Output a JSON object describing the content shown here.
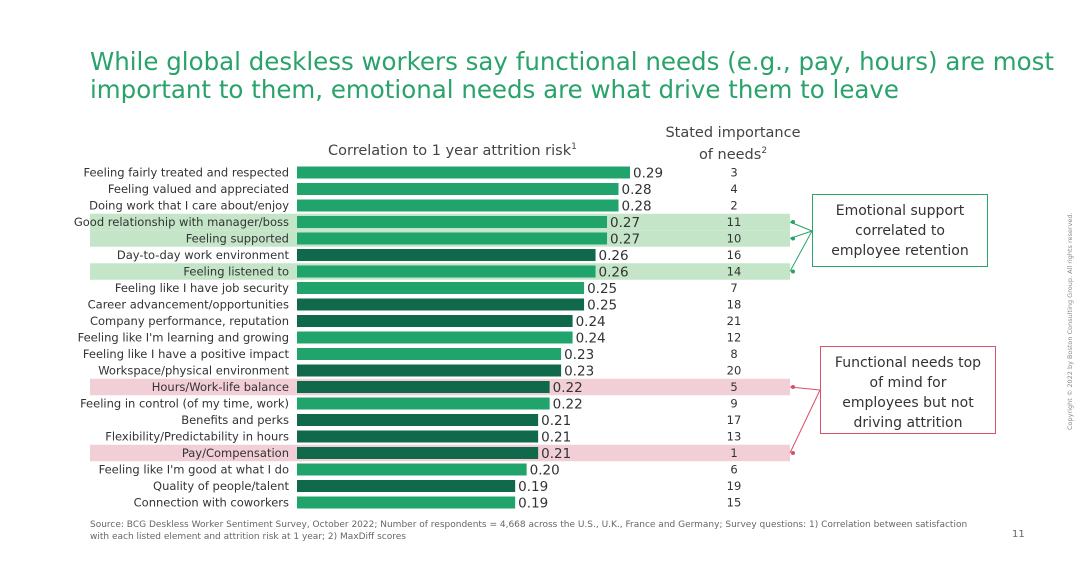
{
  "title_lines": [
    "While global deskless workers say functional needs (e.g., pay, hours) are most",
    "important to them, emotional needs are what drive them to leave"
  ],
  "header_correlation": "Correlation to 1 year attrition risk",
  "header_correlation_sup": "1",
  "header_importance_line1": "Stated importance",
  "header_importance_line2": "of needs",
  "header_importance_sup": "2",
  "chart_data": {
    "type": "bar",
    "orientation": "horizontal",
    "categories": [
      "Feeling fairly treated and respected",
      "Feeling valued and appreciated",
      "Doing work that I care about/enjoy",
      "Good relationship with manager/boss",
      "Feeling supported",
      "Day-to-day work environment",
      "Feeling listened to",
      "Feeling like I have job security",
      "Career advancement/opportunities",
      "Company performance, reputation",
      "Feeling like I'm learning and growing",
      "Feeling like I have a positive impact",
      "Workspace/physical environment",
      "Hours/Work-life balance",
      "Feeling in control (of my time, work)",
      "Benefits and perks",
      "Flexibility/Predictability in hours",
      "Pay/Compensation",
      "Feeling like I'm good at what I do",
      "Quality of people/talent",
      "Connection with coworkers"
    ],
    "values": [
      0.29,
      0.28,
      0.28,
      0.27,
      0.27,
      0.26,
      0.26,
      0.25,
      0.25,
      0.24,
      0.24,
      0.23,
      0.23,
      0.22,
      0.22,
      0.21,
      0.21,
      0.21,
      0.2,
      0.19,
      0.19
    ],
    "value_labels": [
      "0.29",
      "0.28",
      "0.28",
      "0.27",
      "0.27",
      "0.26",
      "0.26",
      "0.25",
      "0.25",
      "0.24",
      "0.24",
      "0.23",
      "0.23",
      "0.22",
      "0.22",
      "0.21",
      "0.21",
      "0.21",
      "0.20",
      "0.19",
      "0.19"
    ],
    "stated_importance": [
      "3",
      "4",
      "2",
      "11",
      "10",
      "16",
      "14",
      "7",
      "18",
      "21",
      "12",
      "8",
      "20",
      "5",
      "9",
      "17",
      "13",
      "1",
      "6",
      "19",
      "15"
    ],
    "bar_type": [
      "emotional",
      "emotional",
      "emotional",
      "emotional",
      "emotional",
      "functional",
      "emotional",
      "emotional",
      "functional",
      "functional",
      "emotional",
      "emotional",
      "functional",
      "functional",
      "emotional",
      "functional",
      "functional",
      "functional",
      "emotional",
      "functional",
      "emotional"
    ],
    "highlight": [
      "none",
      "none",
      "none",
      "green",
      "green",
      "none",
      "green",
      "none",
      "none",
      "none",
      "none",
      "none",
      "none",
      "red",
      "none",
      "none",
      "none",
      "red",
      "none",
      "none",
      "none"
    ],
    "xlim": [
      0,
      0.29
    ],
    "grid": false,
    "colors": {
      "emotional": "#20a46b",
      "functional": "#10694a",
      "highlight_green": "#c5e5c8",
      "highlight_red": "#f2cfd6",
      "connector_green": "#29a36a",
      "connector_red": "#d9506a"
    }
  },
  "callouts": {
    "green_lines": [
      "Emotional support",
      "correlated to",
      "employee retention"
    ],
    "red_lines": [
      "Functional needs top",
      "of mind for",
      "employees but not",
      "driving attrition"
    ]
  },
  "source_text": "Source: BCG Deskless Worker Sentiment Survey, October 2022; Number of respondents = 4,668 across the U.S., U.K., France and Germany; Survey questions: 1) Correlation between satisfaction with each listed element and attrition risk at 1 year; 2) MaxDiff scores",
  "page_number": "11",
  "copyright": "Copyright © 2022 by Boston Consulting Group. All rights reserved."
}
